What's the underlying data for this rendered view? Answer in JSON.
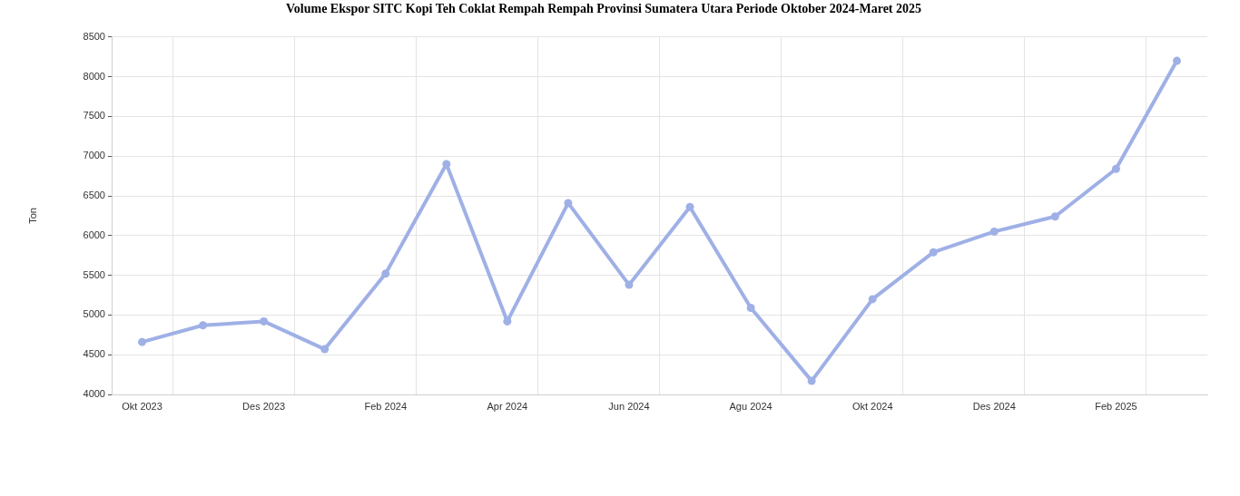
{
  "chart_data": {
    "type": "line",
    "title": "Volume Ekspor SITC Kopi Teh Coklat Rempah Rempah Provinsi Sumatera Utara Periode Oktober 2024-Maret 2025",
    "ylabel": "Ton",
    "categories": [
      "Okt 2023",
      null,
      "Des 2023",
      null,
      "Feb 2024",
      null,
      "Apr 2024",
      null,
      "Jun 2024",
      null,
      "Agu 2024",
      null,
      "Okt 2024",
      null,
      "Des 2024",
      null,
      "Feb 2025",
      null
    ],
    "series": [
      {
        "color": "#9fb0e6",
        "values": [
          4660,
          4870,
          4920,
          4570,
          5520,
          6900,
          4920,
          6410,
          5380,
          6360,
          5090,
          4170,
          5200,
          5790,
          6050,
          6240,
          6840,
          8200
        ]
      }
    ],
    "ylim": [
      4000,
      8500
    ],
    "yticks": [
      4000,
      4500,
      5000,
      5500,
      6000,
      6500,
      7000,
      7500,
      8000,
      8500
    ],
    "grid": true,
    "marker": "circle"
  }
}
